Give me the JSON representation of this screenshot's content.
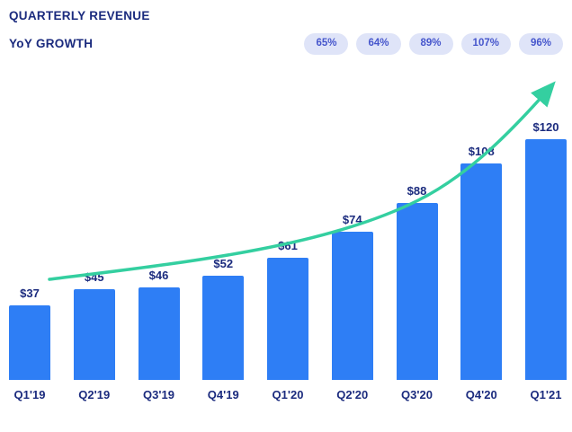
{
  "header": {
    "title": "QUARTERLY REVENUE",
    "yoy_label": "YoY GROWTH"
  },
  "yoy": {
    "values": [
      "65%",
      "64%",
      "89%",
      "107%",
      "96%"
    ]
  },
  "chart_data": {
    "type": "bar",
    "title": "QUARTERLY REVENUE",
    "categories": [
      "Q1'19",
      "Q2'19",
      "Q3'19",
      "Q4'19",
      "Q1'20",
      "Q2'20",
      "Q3'20",
      "Q4'20",
      "Q1'21"
    ],
    "values": [
      37,
      45,
      46,
      52,
      61,
      74,
      88,
      108,
      120
    ],
    "bar_labels": [
      "$37",
      "$45",
      "$46",
      "$52",
      "$61",
      "$74",
      "$88",
      "$108",
      "$120"
    ],
    "yoy_growth_labels": [
      "65%",
      "64%",
      "89%",
      "107%",
      "96%"
    ],
    "xlabel": "",
    "ylabel": "",
    "ylim": [
      0,
      130
    ],
    "grid": false,
    "legend_position": "none",
    "annotations": [
      "upward curved growth arrow from first bar to above last bar"
    ],
    "colors": {
      "bar": "#2e7ef5",
      "label_text": "#1b2b7e",
      "pill_bg": "#dfe4f8",
      "pill_text": "#4656cc",
      "arrow": "#34cfa0",
      "background": "#ffffff"
    }
  }
}
